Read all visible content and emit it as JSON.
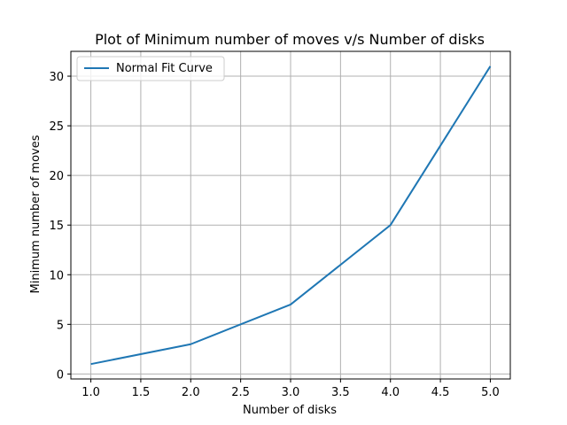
{
  "chart_data": {
    "type": "line",
    "title": "Plot of Minimum number of moves v/s Number of disks",
    "xlabel": "Number of disks",
    "ylabel": "Minimum number of moves",
    "xlim": [
      0.8,
      5.2
    ],
    "ylim": [
      -0.5,
      32.5
    ],
    "xticks": [
      1.0,
      1.5,
      2.0,
      2.5,
      3.0,
      3.5,
      4.0,
      4.5,
      5.0
    ],
    "xtick_labels": [
      "1.0",
      "1.5",
      "2.0",
      "2.5",
      "3.0",
      "3.5",
      "4.0",
      "4.5",
      "5.0"
    ],
    "yticks": [
      0,
      5,
      10,
      15,
      20,
      25,
      30
    ],
    "ytick_labels": [
      "0",
      "5",
      "10",
      "15",
      "20",
      "25",
      "30"
    ],
    "grid": true,
    "legend_position": "top-left",
    "series": [
      {
        "name": "Normal Fit Curve",
        "color": "#1f77b4",
        "x": [
          1,
          2,
          3,
          4,
          5
        ],
        "values": [
          1,
          3,
          7,
          15,
          31
        ]
      }
    ]
  }
}
